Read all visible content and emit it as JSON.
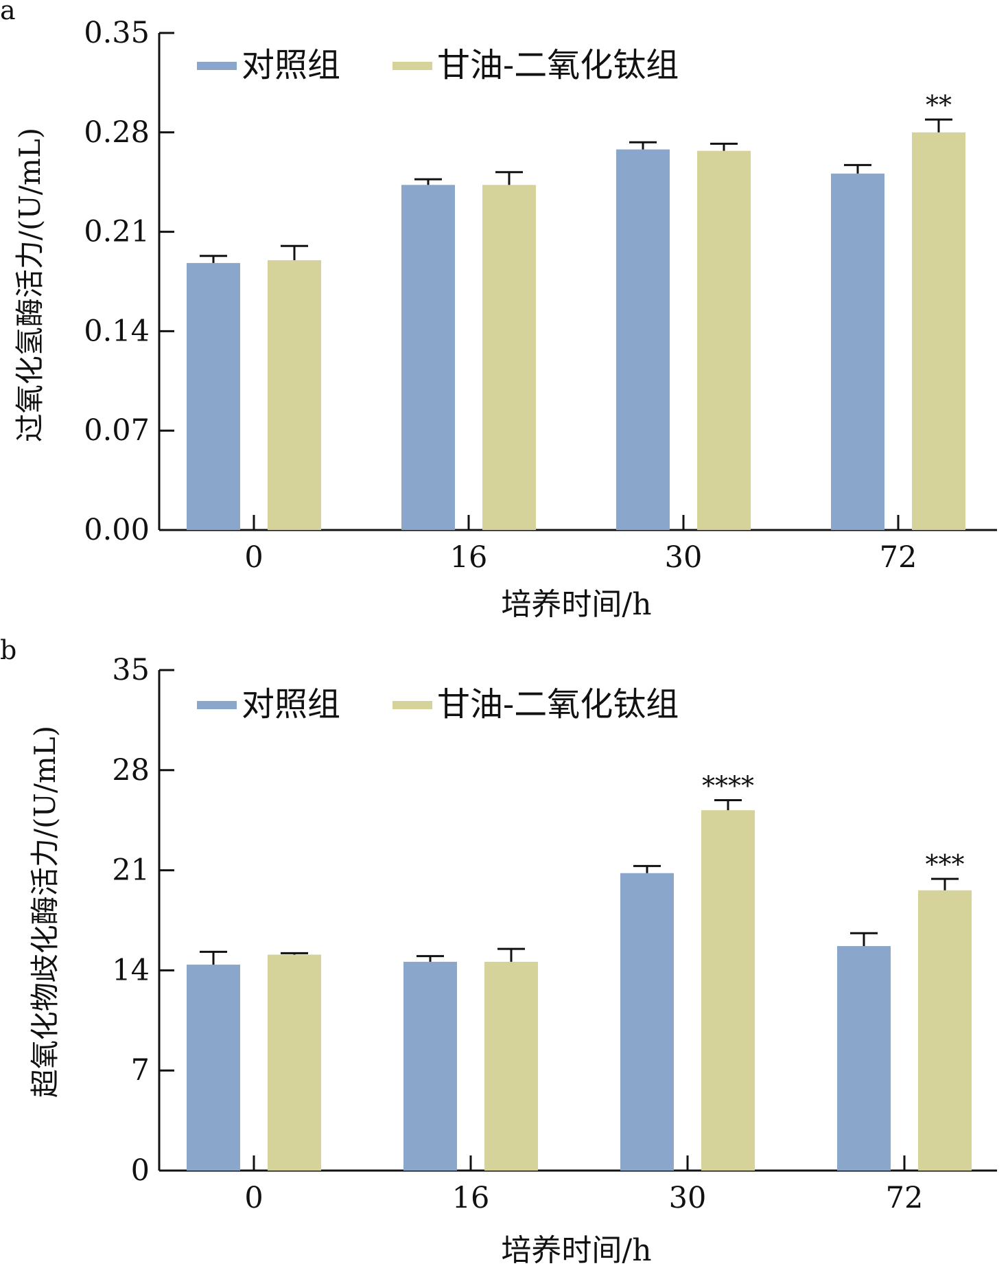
{
  "colors": {
    "control": "#8aa6cb",
    "treatment": "#d5d39a",
    "axis": "#111111",
    "text": "#111111"
  },
  "chart_data": [
    {
      "panel_label": "a",
      "type": "bar",
      "categories": [
        "0",
        "16",
        "30",
        "72"
      ],
      "xlabel": "培养时间/h",
      "ylabel": "过氧化氢酶活力/(U/mL)",
      "ylim": [
        0,
        0.35
      ],
      "yticks": [
        "0.00",
        "0.07",
        "0.14",
        "0.21",
        "0.28",
        "0.35"
      ],
      "legend_position": "top-left",
      "series": [
        {
          "name": "对照组",
          "values": [
            0.188,
            0.243,
            0.268,
            0.251
          ],
          "errors": [
            0.005,
            0.004,
            0.005,
            0.006
          ],
          "annotations": [
            "",
            "",
            "",
            ""
          ]
        },
        {
          "name": "甘油-二氧化钛组",
          "values": [
            0.19,
            0.243,
            0.267,
            0.28
          ],
          "errors": [
            0.01,
            0.009,
            0.005,
            0.009
          ],
          "annotations": [
            "",
            "",
            "",
            "**"
          ]
        }
      ]
    },
    {
      "panel_label": "b",
      "type": "bar",
      "categories": [
        "0",
        "16",
        "30",
        "72"
      ],
      "xlabel": "培养时间/h",
      "ylabel": "超氧化物歧化酶活力/(U/mL)",
      "ylim": [
        0,
        35
      ],
      "yticks": [
        "0",
        "7",
        "14",
        "21",
        "28",
        "35"
      ],
      "legend_position": "top-left",
      "series": [
        {
          "name": "对照组",
          "values": [
            14.4,
            14.6,
            20.8,
            15.7
          ],
          "errors": [
            0.9,
            0.4,
            0.5,
            0.9
          ],
          "annotations": [
            "",
            "",
            "",
            ""
          ]
        },
        {
          "name": "甘油-二氧化钛组",
          "values": [
            15.1,
            14.6,
            25.2,
            19.6
          ],
          "errors": [
            0.1,
            0.9,
            0.7,
            0.8
          ],
          "annotations": [
            "",
            "",
            "****",
            "***"
          ]
        }
      ]
    }
  ]
}
